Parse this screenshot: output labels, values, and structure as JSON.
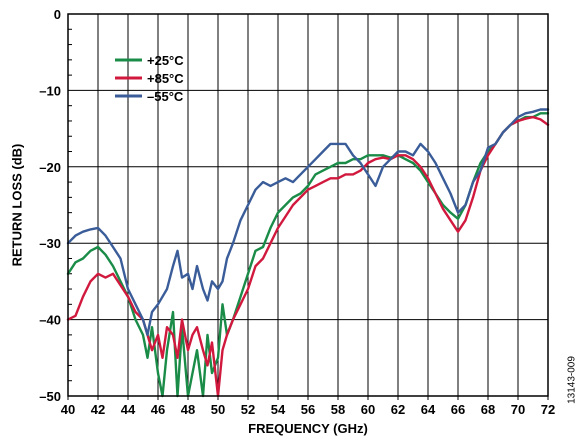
{
  "chart_data": {
    "type": "line",
    "xlabel": "FREQUENCY (GHz)",
    "ylabel": "RETURN LOSS (dB)",
    "xlim": [
      40,
      72
    ],
    "ylim": [
      -50,
      0
    ],
    "x_ticks": [
      "40",
      "42",
      "44",
      "46",
      "48",
      "50",
      "52",
      "54",
      "56",
      "58",
      "60",
      "62",
      "64",
      "66",
      "68",
      "70",
      "72"
    ],
    "y_ticks": [
      "0",
      "–10",
      "–20",
      "–30",
      "–40",
      "–50"
    ],
    "grid": true,
    "legend_position": "top-left",
    "figure_id": "13143-009",
    "series": [
      {
        "name": "+25°C",
        "color": "#1a8c48",
        "x": [
          40,
          40.5,
          41,
          41.5,
          42,
          42.5,
          43,
          43.5,
          44,
          44.5,
          45,
          45.3,
          45.6,
          46,
          46.3,
          46.6,
          47,
          47.3,
          47.6,
          48,
          48.3,
          48.6,
          49,
          49.3,
          49.6,
          50,
          50.3,
          50.6,
          51,
          51.5,
          52,
          52.5,
          53,
          53.5,
          54,
          54.5,
          55,
          55.5,
          56,
          56.5,
          57,
          57.5,
          58,
          58.5,
          59,
          59.5,
          60,
          60.5,
          61,
          61.5,
          62,
          62.5,
          63,
          63.5,
          64,
          64.5,
          65,
          65.5,
          66,
          66.5,
          67,
          67.5,
          68,
          68.5,
          69,
          69.5,
          70,
          70.5,
          71,
          71.5,
          72
        ],
        "y": [
          -34,
          -32.5,
          -32,
          -31,
          -30.5,
          -31.5,
          -33,
          -35,
          -37,
          -40,
          -42,
          -45,
          -41,
          -47,
          -50,
          -44,
          -39,
          -50,
          -41,
          -50,
          -47,
          -44,
          -50,
          -42,
          -47,
          -45,
          -38,
          -42,
          -40,
          -37,
          -34,
          -31,
          -30.5,
          -28,
          -26,
          -25,
          -24,
          -23.5,
          -22.5,
          -21,
          -20.5,
          -20,
          -19.5,
          -19.5,
          -19,
          -19,
          -18.5,
          -18.5,
          -18.5,
          -18.8,
          -18.5,
          -19,
          -19.5,
          -20.5,
          -22,
          -23.5,
          -25,
          -26,
          -26.8,
          -25,
          -22,
          -19.5,
          -18,
          -17,
          -15.5,
          -14.5,
          -14,
          -13.5,
          -13.5,
          -13,
          -13
        ]
      },
      {
        "name": "+85°C",
        "color": "#d1193e",
        "x": [
          40,
          40.5,
          41,
          41.5,
          42,
          42.5,
          43,
          43.5,
          44,
          44.5,
          45,
          45.3,
          45.6,
          46,
          46.3,
          46.6,
          47,
          47.3,
          47.6,
          48,
          48.3,
          48.6,
          49,
          49.3,
          49.6,
          50,
          50.3,
          50.6,
          51,
          51.5,
          52,
          52.5,
          53,
          53.5,
          54,
          54.5,
          55,
          55.5,
          56,
          56.5,
          57,
          57.5,
          58,
          58.5,
          59,
          59.5,
          60,
          60.5,
          61,
          61.5,
          62,
          62.5,
          63,
          63.5,
          64,
          64.5,
          65,
          65.5,
          66,
          66.5,
          67,
          67.5,
          68,
          68.5,
          69,
          69.5,
          70,
          70.5,
          71,
          71.5,
          72
        ],
        "y": [
          -40,
          -39.5,
          -37,
          -35,
          -34,
          -34.5,
          -34,
          -35.5,
          -37,
          -39,
          -40,
          -42,
          -44,
          -42,
          -45,
          -41,
          -42,
          -45,
          -40,
          -44,
          -42,
          -41,
          -44,
          -46,
          -43,
          -50,
          -44,
          -42,
          -40,
          -38,
          -36,
          -33,
          -32,
          -30,
          -28,
          -26.5,
          -25,
          -24,
          -23,
          -22.5,
          -22,
          -21.5,
          -21.5,
          -21,
          -21,
          -20.5,
          -19.5,
          -19,
          -18.8,
          -19,
          -18.5,
          -18.5,
          -19,
          -20,
          -21.5,
          -23.5,
          -25.5,
          -27,
          -28.5,
          -27,
          -24,
          -20.5,
          -18.5,
          -17,
          -15.5,
          -14.5,
          -14,
          -13.7,
          -13.5,
          -13.8,
          -14.5
        ]
      },
      {
        "name": "–55°C",
        "color": "#3a5d99",
        "x": [
          40,
          40.5,
          41,
          41.5,
          42,
          42.5,
          43,
          43.5,
          44,
          44.5,
          45,
          45.3,
          45.6,
          46,
          46.3,
          46.6,
          47,
          47.3,
          47.6,
          48,
          48.3,
          48.6,
          49,
          49.3,
          49.6,
          50,
          50.3,
          50.6,
          51,
          51.5,
          52,
          52.5,
          53,
          53.5,
          54,
          54.5,
          55,
          55.5,
          56,
          56.5,
          57,
          57.5,
          58,
          58.5,
          59,
          59.5,
          60,
          60.5,
          61,
          61.5,
          62,
          62.5,
          63,
          63.5,
          64,
          64.5,
          65,
          65.5,
          66,
          66.5,
          67,
          67.5,
          68,
          68.5,
          69,
          69.5,
          70,
          70.5,
          71,
          71.5,
          72
        ],
        "y": [
          -30,
          -29,
          -28.5,
          -28.2,
          -28,
          -29,
          -30.5,
          -32,
          -36,
          -38,
          -40,
          -42,
          -39,
          -38,
          -37,
          -36,
          -33,
          -31,
          -34.5,
          -34,
          -36,
          -33,
          -36,
          -37.5,
          -35,
          -36,
          -35,
          -32,
          -30,
          -27,
          -25,
          -23,
          -22,
          -22.5,
          -22,
          -21.5,
          -22,
          -21,
          -20,
          -19,
          -18,
          -17,
          -17,
          -17,
          -18.5,
          -19.5,
          -21,
          -22.5,
          -20,
          -19,
          -18,
          -18,
          -18.5,
          -17,
          -18,
          -19.5,
          -21.5,
          -23.5,
          -26,
          -25,
          -22,
          -20.5,
          -17.5,
          -17,
          -15.5,
          -14.5,
          -13.5,
          -13,
          -12.8,
          -12.5,
          -12.5
        ]
      }
    ]
  }
}
